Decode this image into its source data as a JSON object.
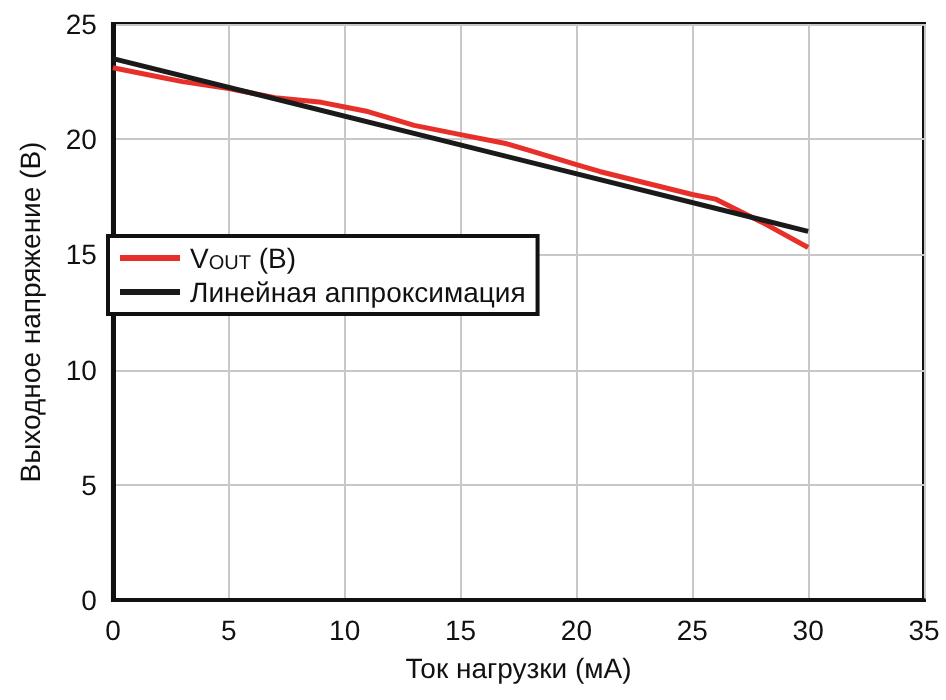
{
  "chart_data": {
    "type": "line",
    "xlabel": "Ток нагрузки (мА)",
    "ylabel": "Выходное напряжение (В)",
    "xlim": [
      0,
      35
    ],
    "xticks": [
      0,
      5,
      10,
      15,
      20,
      25,
      30,
      35
    ],
    "ylim": [
      0,
      25
    ],
    "yticks": [
      0,
      5,
      10,
      15,
      20,
      25
    ],
    "grid": true,
    "legend": "left",
    "marker": "none",
    "line_style": "solid",
    "series": [
      {
        "name": "V$_{OUT}$ (B)",
        "color": "#e8302a",
        "x": [
          0,
          2,
          3,
          5,
          7,
          9,
          10,
          11,
          13,
          15,
          17,
          18,
          20,
          21,
          23,
          25,
          26,
          28,
          30
        ],
        "values": [
          23.1,
          22.7,
          22.5,
          22.2,
          21.8,
          21.6,
          21.4,
          21.2,
          20.6,
          20.2,
          19.8,
          19.5,
          18.9,
          18.6,
          18.1,
          17.6,
          17.4,
          16.4,
          15.3
        ]
      },
      {
        "name": "Линейная аппроксимация",
        "color": "#1a1a1a",
        "x": [
          0,
          30
        ],
        "values": [
          23.5,
          16.0
        ]
      }
    ]
  }
}
